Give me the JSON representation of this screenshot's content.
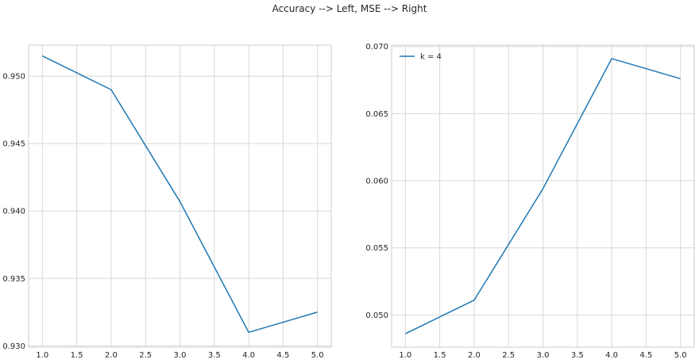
{
  "figure": {
    "suptitle": "Accuracy --> Left, MSE --> Right"
  },
  "chart_data": [
    {
      "type": "line",
      "title": "",
      "xlabel": "",
      "ylabel": "",
      "xlim": [
        0.8,
        5.2
      ],
      "ylim": [
        0.9299,
        0.9523
      ],
      "x_ticks": [
        1.0,
        1.5,
        2.0,
        2.5,
        3.0,
        3.5,
        4.0,
        4.5,
        5.0
      ],
      "x_tick_labels": [
        "1.0",
        "1.5",
        "2.0",
        "2.5",
        "3.0",
        "3.5",
        "4.0",
        "4.5",
        "5.0"
      ],
      "y_ticks": [
        0.93,
        0.935,
        0.94,
        0.945,
        0.95
      ],
      "y_tick_labels": [
        "0.930",
        "0.935",
        "0.940",
        "0.945",
        "0.950"
      ],
      "grid": true,
      "series": [
        {
          "x": [
            1,
            2,
            3,
            4,
            5
          ],
          "values": [
            0.9515,
            0.949,
            0.9407,
            0.931,
            0.9325
          ],
          "color": "#1f77b4"
        }
      ]
    },
    {
      "type": "line",
      "title": "",
      "xlabel": "",
      "ylabel": "",
      "xlim": [
        0.8,
        5.2
      ],
      "ylim": [
        0.0476,
        0.0701
      ],
      "x_ticks": [
        1.0,
        1.5,
        2.0,
        2.5,
        3.0,
        3.5,
        4.0,
        4.5,
        5.0
      ],
      "x_tick_labels": [
        "1.0",
        "1.5",
        "2.0",
        "2.5",
        "3.0",
        "3.5",
        "4.0",
        "4.5",
        "5.0"
      ],
      "y_ticks": [
        0.05,
        0.055,
        0.06,
        0.065,
        0.07
      ],
      "y_tick_labels": [
        "0.050",
        "0.055",
        "0.060",
        "0.065",
        "0.070"
      ],
      "grid": true,
      "legend": "top-left",
      "series": [
        {
          "name": "k = 4",
          "x": [
            1,
            2,
            3,
            4,
            5
          ],
          "values": [
            0.0486,
            0.0511,
            0.0594,
            0.0691,
            0.0676
          ],
          "color": "#1f77b4"
        }
      ]
    }
  ]
}
